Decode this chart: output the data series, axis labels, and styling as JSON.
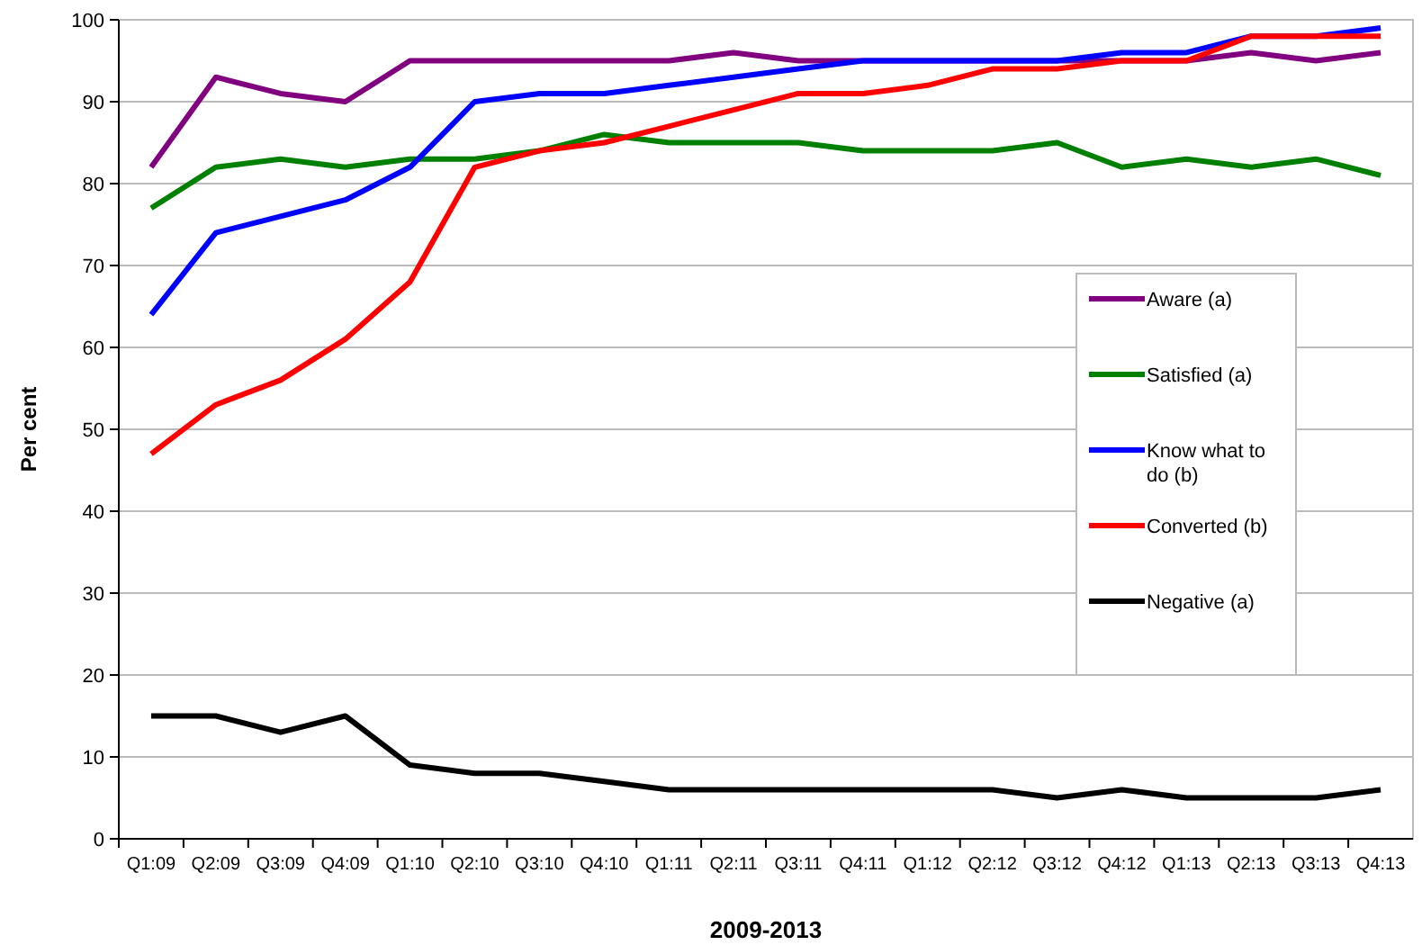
{
  "chart_data": {
    "type": "line",
    "xlabel": "2009-2013",
    "ylabel": "Per cent",
    "categories": [
      "Q1:09",
      "Q2:09",
      "Q3:09",
      "Q4:09",
      "Q1:10",
      "Q2:10",
      "Q3:10",
      "Q4:10",
      "Q1:11",
      "Q2:11",
      "Q3:11",
      "Q4:11",
      "Q1:12",
      "Q2:12",
      "Q3:12",
      "Q4:12",
      "Q1:13",
      "Q2:13",
      "Q3:13",
      "Q4:13"
    ],
    "series": [
      {
        "name": "Aware (a)",
        "color": "#800080",
        "values": [
          82,
          93,
          91,
          90,
          95,
          95,
          95,
          95,
          95,
          96,
          95,
          95,
          95,
          95,
          95,
          95,
          95,
          96,
          95,
          96
        ]
      },
      {
        "name": "Satisfied (a)",
        "color": "#008000",
        "values": [
          77,
          82,
          83,
          82,
          83,
          83,
          84,
          86,
          85,
          85,
          85,
          84,
          84,
          84,
          85,
          82,
          83,
          82,
          83,
          81
        ]
      },
      {
        "name": "Know what to do (b)",
        "color": "#0000ff",
        "values": [
          64,
          74,
          76,
          78,
          82,
          90,
          91,
          91,
          92,
          93,
          94,
          95,
          95,
          95,
          95,
          96,
          96,
          98,
          98,
          99
        ]
      },
      {
        "name": "Converted (b)",
        "color": "#ff0000",
        "values": [
          47,
          53,
          56,
          61,
          68,
          82,
          84,
          85,
          87,
          89,
          91,
          91,
          92,
          94,
          94,
          95,
          95,
          98,
          98,
          98
        ]
      },
      {
        "name": "Negative (a)",
        "color": "#000000",
        "values": [
          15,
          15,
          13,
          15,
          9,
          8,
          8,
          7,
          6,
          6,
          6,
          6,
          6,
          6,
          5,
          6,
          5,
          5,
          5,
          6
        ]
      }
    ],
    "ylim": [
      0,
      100
    ],
    "yticks": [
      0,
      10,
      20,
      30,
      40,
      50,
      60,
      70,
      80,
      90,
      100
    ],
    "grid": "y",
    "legend": "right",
    "marker": "none",
    "line_style": "solid"
  }
}
